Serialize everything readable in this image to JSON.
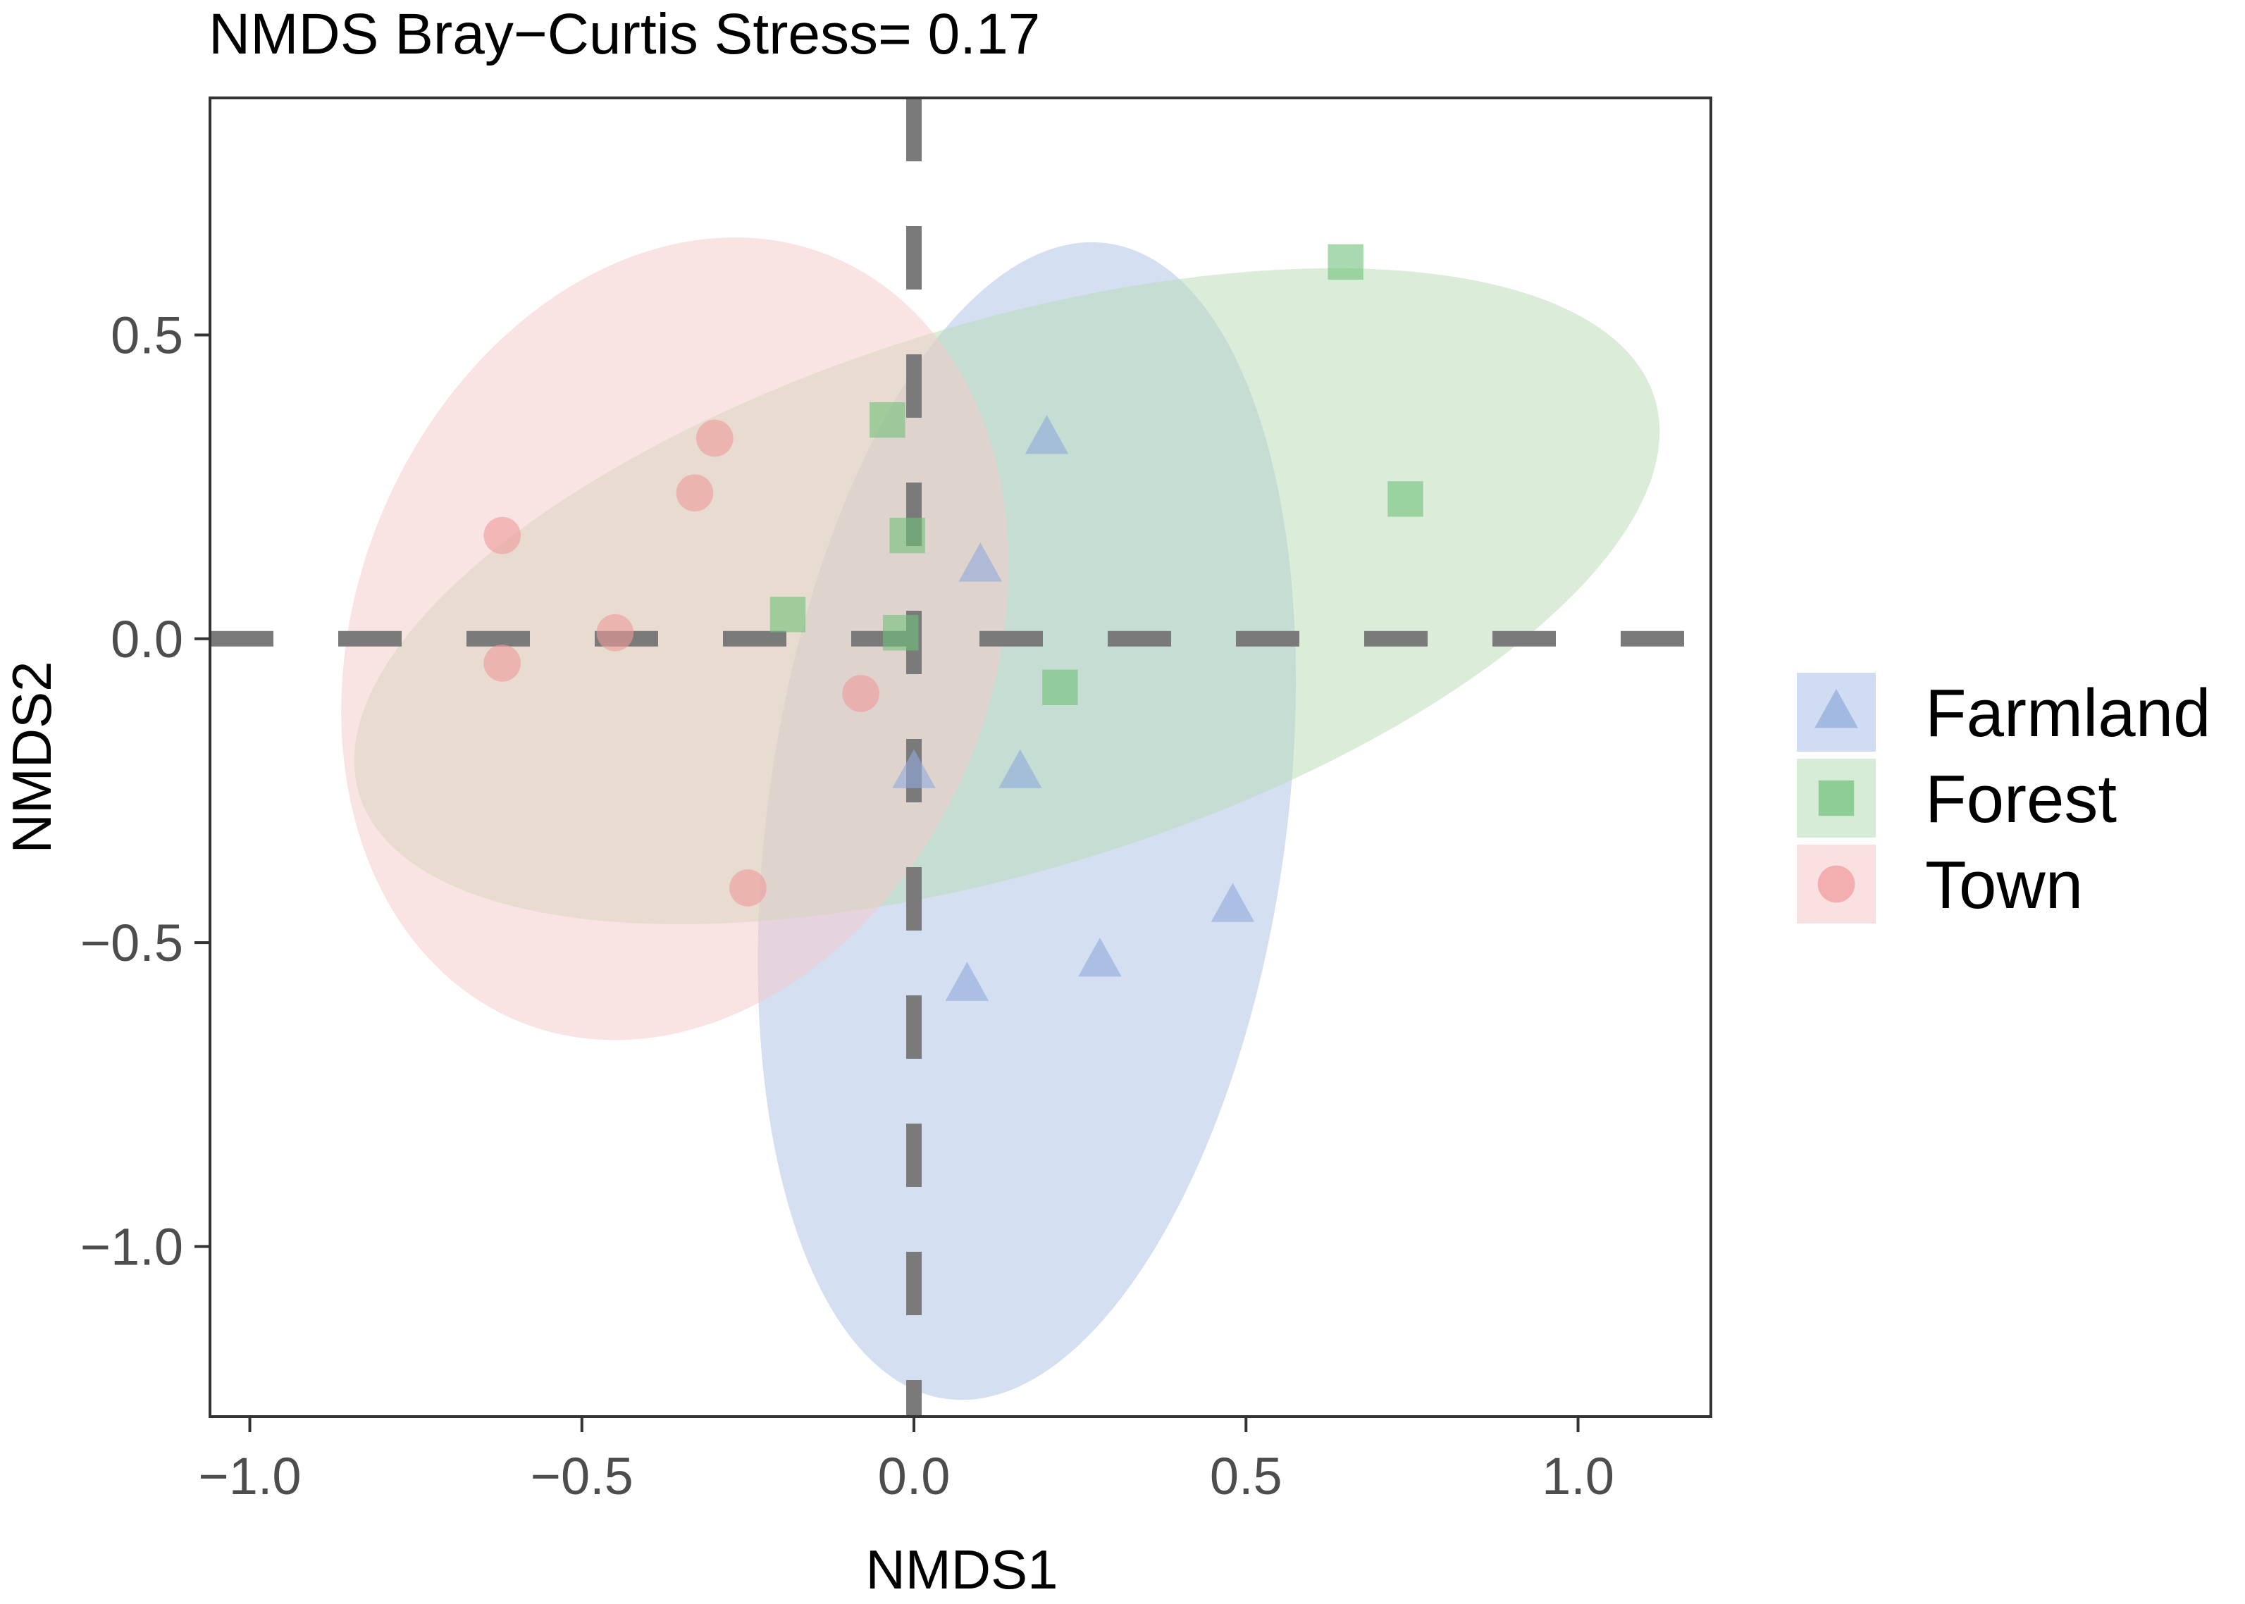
{
  "chart_data": {
    "type": "scatter",
    "title": "NMDS Bray−Curtis Stress= 0.17",
    "xlabel": "NMDS1",
    "ylabel": "NMDS2",
    "xlim": [
      -1.06,
      1.2
    ],
    "ylim": [
      -1.28,
      0.89
    ],
    "xticks": [
      -1.0,
      -0.5,
      0.0,
      0.5,
      1.0
    ],
    "xtick_labels": [
      "−1.0",
      "−0.5",
      "0.0",
      "0.5",
      "1.0"
    ],
    "yticks": [
      0.5,
      0.0,
      -0.5,
      -1.0
    ],
    "ytick_labels": [
      "0.5",
      "0.0",
      "−0.5",
      "−1.0"
    ],
    "grid": false,
    "reference_lines": {
      "x": 0,
      "y": 0
    },
    "legend_position": "right",
    "series": [
      {
        "name": "Farmland",
        "shape": "triangle",
        "color": "#8faadc",
        "fill": "#a9bfe6",
        "points": [
          {
            "x": 0.2,
            "y": 0.33
          },
          {
            "x": 0.1,
            "y": 0.12
          },
          {
            "x": 0.0,
            "y": -0.22
          },
          {
            "x": 0.16,
            "y": -0.22
          },
          {
            "x": 0.48,
            "y": -0.44
          },
          {
            "x": 0.28,
            "y": -0.53
          },
          {
            "x": 0.08,
            "y": -0.57
          }
        ],
        "ellipse": {
          "cx": 0.17,
          "cy": -0.3,
          "rx": 0.39,
          "ry": 0.96,
          "angle": -8
        }
      },
      {
        "name": "Forest",
        "shape": "square",
        "color": "#70c17a",
        "fill": "#b7dcb4",
        "points": [
          {
            "x": 0.65,
            "y": 0.62
          },
          {
            "x": 0.74,
            "y": 0.23
          },
          {
            "x": -0.04,
            "y": 0.36
          },
          {
            "x": -0.01,
            "y": 0.17
          },
          {
            "x": -0.19,
            "y": 0.04
          },
          {
            "x": -0.02,
            "y": 0.01
          },
          {
            "x": 0.22,
            "y": -0.08
          }
        ],
        "ellipse": {
          "cx": 0.14,
          "cy": 0.07,
          "rx": 1.02,
          "ry": 0.45,
          "angle": 17
        }
      },
      {
        "name": "Town",
        "shape": "circle",
        "color": "#ef9a9a",
        "fill": "#f6c9c8",
        "points": [
          {
            "x": -0.3,
            "y": 0.33
          },
          {
            "x": -0.33,
            "y": 0.24
          },
          {
            "x": -0.62,
            "y": 0.17
          },
          {
            "x": -0.45,
            "y": 0.01
          },
          {
            "x": -0.62,
            "y": -0.04
          },
          {
            "x": -0.08,
            "y": -0.09
          },
          {
            "x": -0.25,
            "y": -0.41
          }
        ],
        "ellipse": {
          "cx": -0.36,
          "cy": 0.0,
          "rx": 0.48,
          "ry": 0.68,
          "angle": -22
        }
      }
    ]
  }
}
